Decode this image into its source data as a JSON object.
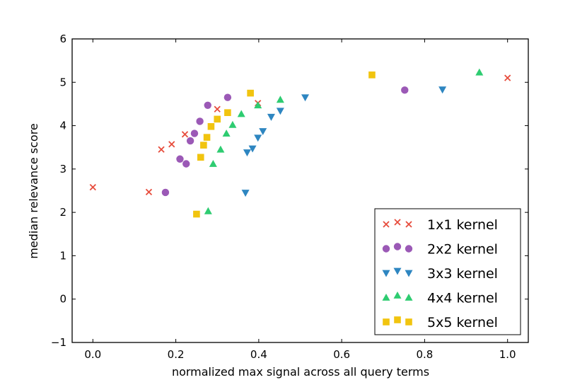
{
  "chart_data": {
    "type": "scatter",
    "title": "",
    "xlabel": "normalized max signal across all query terms",
    "ylabel": "median relevance score",
    "xlim": [
      -0.05,
      1.05
    ],
    "ylim": [
      -1,
      6
    ],
    "xticks": [
      0.0,
      0.2,
      0.4,
      0.6,
      0.8,
      1.0
    ],
    "xtick_labels": [
      "0.0",
      "0.2",
      "0.4",
      "0.6",
      "0.8",
      "1.0"
    ],
    "yticks": [
      -1,
      0,
      1,
      2,
      3,
      4,
      5,
      6
    ],
    "ytick_labels": [
      "−1",
      "0",
      "1",
      "2",
      "3",
      "4",
      "5",
      "6"
    ],
    "grid": false,
    "legend_position": "bottom-right",
    "series": [
      {
        "name": "1x1 kernel",
        "marker": "x",
        "color": "#e74c3c",
        "x": [
          0.0,
          0.135,
          0.165,
          0.19,
          0.222,
          0.3,
          0.398,
          1.0
        ],
        "y": [
          2.58,
          2.47,
          3.45,
          3.57,
          3.8,
          4.38,
          4.52,
          5.1
        ]
      },
      {
        "name": "2x2 kernel",
        "marker": "circle",
        "color": "#9b59b6",
        "x": [
          0.175,
          0.21,
          0.225,
          0.235,
          0.245,
          0.258,
          0.277,
          0.325,
          0.752
        ],
        "y": [
          2.46,
          3.23,
          3.12,
          3.65,
          3.82,
          4.1,
          4.47,
          4.65,
          4.82
        ]
      },
      {
        "name": "3x3 kernel",
        "marker": "triangle-down",
        "color": "#2e86c1",
        "x": [
          0.368,
          0.372,
          0.385,
          0.398,
          0.41,
          0.43,
          0.452,
          0.512,
          0.843
        ],
        "y": [
          2.45,
          3.38,
          3.47,
          3.72,
          3.87,
          4.2,
          4.34,
          4.65,
          4.83
        ]
      },
      {
        "name": "4x4 kernel",
        "marker": "triangle-up",
        "color": "#2ecc71",
        "x": [
          0.278,
          0.29,
          0.308,
          0.322,
          0.337,
          0.358,
          0.398,
          0.452,
          0.932
        ],
        "y": [
          2.03,
          3.12,
          3.45,
          3.82,
          4.02,
          4.27,
          4.47,
          4.6,
          5.23
        ]
      },
      {
        "name": "5x5 kernel",
        "marker": "square",
        "color": "#f1c40f",
        "x": [
          0.25,
          0.26,
          0.267,
          0.275,
          0.285,
          0.3,
          0.325,
          0.38,
          0.673
        ],
        "y": [
          1.96,
          3.27,
          3.55,
          3.73,
          3.98,
          4.15,
          4.3,
          4.75,
          5.17
        ]
      }
    ]
  }
}
